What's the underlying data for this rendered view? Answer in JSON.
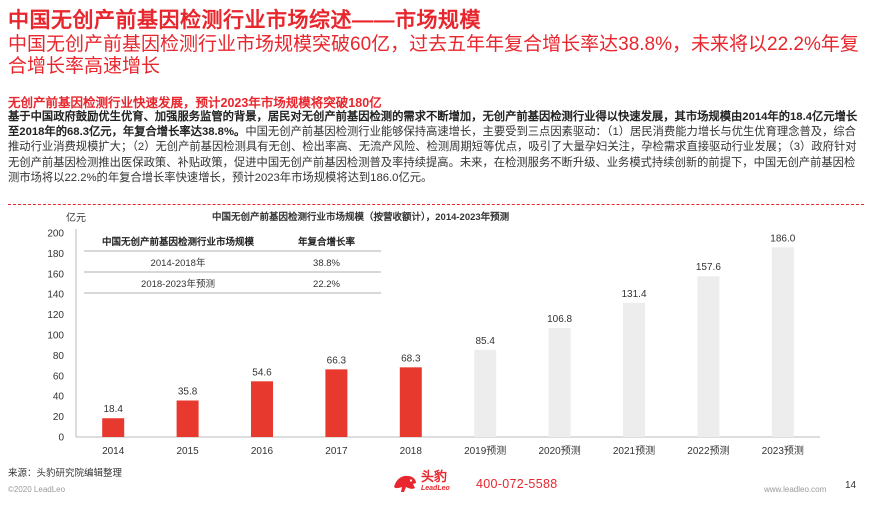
{
  "header": {
    "title": "中国无创产前基因检测行业市场综述——市场规模",
    "subtitle": "中国无创产前基因检测行业市场规模突破60亿，过去五年年复合增长率达38.8%，未来将以22.2%年复合增长率高速增长"
  },
  "section": {
    "heading": "无创产前基因检测行业快速发展，预计2023年市场规模将突破180亿",
    "body_bold": "基于中国政府鼓励优生优育、加强服务监管的背景，居民对无创产前基因检测的需求不断增加，无创产前基因检测行业得以快速发展，其市场规模由2014年的18.4亿元增长至2018年的68.3亿元，年复合增长率达38.8%。",
    "body_rest": "中国无创产前基因检测行业能够保持高速增长，主要受到三点因素驱动：（1）居民消费能力增长与优生优育理念普及，综合推动行业消费规模扩大；（2）无创产前基因检测具有无创、检出率高、无流产风险、检测周期短等优点，吸引了大量孕妇关注，孕检需求直接驱动行业发展；（3）政府针对无创产前基因检测推出医保政策、补贴政策，促进中国无创产前基因检测普及率持续提高。未来，在检测服务不断升级、业务模式持续创新的前提下，中国无创产前基因检测市场将以22.2%的年复合增长率快速增长，预计2023年市场规模将达到186.0亿元。"
  },
  "chart_data": {
    "type": "bar",
    "title": "中国无创产前基因检测行业市场规模（按营收额计），2014-2023年预测",
    "ylabel": "亿元",
    "ylim": [
      0,
      200
    ],
    "yticks": [
      0,
      20,
      40,
      60,
      80,
      100,
      120,
      140,
      160,
      180,
      200
    ],
    "categories": [
      "2014",
      "2015",
      "2016",
      "2017",
      "2018",
      "2019预测",
      "2020预测",
      "2021预测",
      "2022预测",
      "2023预测"
    ],
    "values": [
      18.4,
      35.8,
      54.6,
      66.3,
      68.3,
      85.4,
      106.8,
      131.4,
      157.6,
      186.0
    ],
    "value_labels": [
      "18.4",
      "35.8",
      "54.6",
      "66.3",
      "68.3",
      "85.4",
      "106.8",
      "131.4",
      "157.6",
      "186.0"
    ],
    "colors": {
      "actual": "#e8392f",
      "forecast": "#ededed"
    },
    "actual_count": 5,
    "grid": false,
    "inset_table": {
      "headers": [
        "中国无创产前基因检测行业市场规模",
        "年复合增长率"
      ],
      "rows": [
        [
          "2014-2018年",
          "38.8%"
        ],
        [
          "2018-2023年预测",
          "22.2%"
        ]
      ]
    }
  },
  "footer": {
    "source": "来源：头豹研究院编辑整理",
    "copyright": "©2020 LeadLeo",
    "logo_cn": "头豹",
    "logo_en": "LeadLeo",
    "phone": "400-072-5588",
    "website": "www.leadleo.com",
    "page": "14"
  }
}
